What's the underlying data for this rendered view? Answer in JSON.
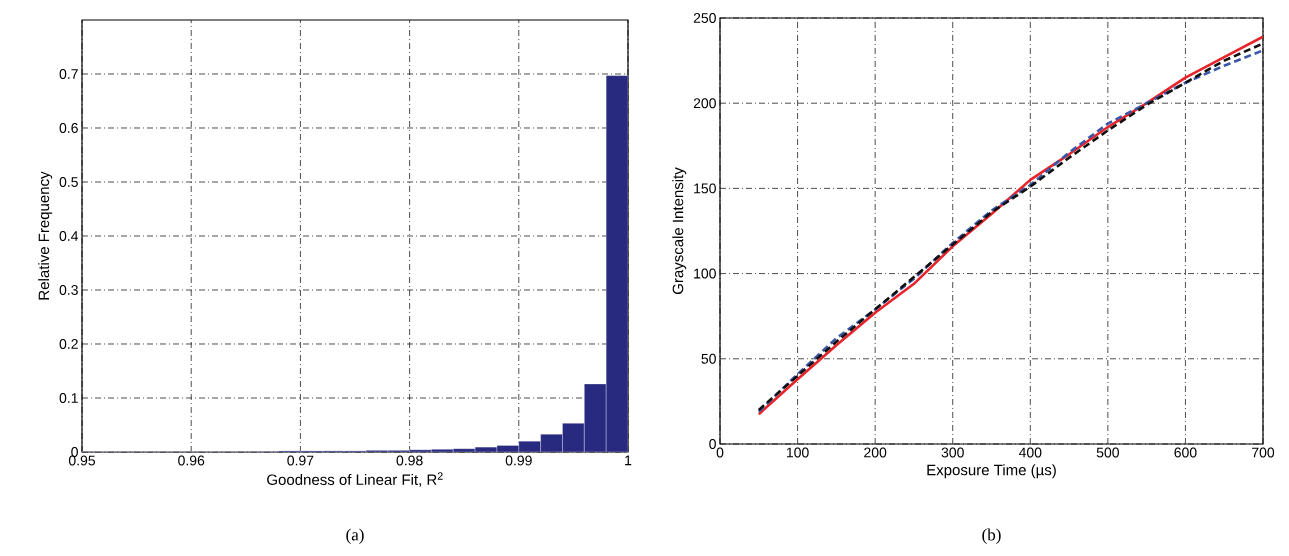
{
  "chart_data": [
    {
      "type": "histogram",
      "xlabel": "Goodness of Linear Fit, R$^{2}$",
      "ylabel": "Relative Frequency",
      "annotations": [
        "(a)"
      ],
      "bins": [
        0.95,
        0.952,
        0.954,
        0.956,
        0.958,
        0.96,
        0.962,
        0.964,
        0.966,
        0.968,
        0.97,
        0.972,
        0.974,
        0.976,
        0.978,
        0.98,
        0.982,
        0.984,
        0.986,
        0.988,
        0.99,
        0.992,
        0.994,
        0.996,
        0.998,
        1.0
      ],
      "values": [
        0.001,
        0.001,
        0.001,
        0.001,
        0.001,
        0.001,
        0.001,
        0.001,
        0.001,
        0.002,
        0.002,
        0.002,
        0.002,
        0.003,
        0.003,
        0.004,
        0.005,
        0.006,
        0.009,
        0.012,
        0.02,
        0.033,
        0.053,
        0.126,
        0.697
      ],
      "color": "#282a7f",
      "xlim": [
        0.95,
        1
      ],
      "ylim": [
        0,
        0.8
      ],
      "xticks": [
        0.95,
        0.96,
        0.97,
        0.98,
        0.99,
        1
      ],
      "yticks": [
        0,
        0.1,
        0.2,
        0.3,
        0.4,
        0.5,
        0.6,
        0.7
      ],
      "grid": true
    },
    {
      "type": "line",
      "xlabel": "Exposure Time (µs)",
      "ylabel": "Grayscale Intensity",
      "annotations": [
        "(b)"
      ],
      "x": [
        50,
        100,
        150,
        200,
        250,
        300,
        350,
        400,
        450,
        500,
        550,
        600,
        650,
        700
      ],
      "series": [
        {
          "color": "#e8242b",
          "line_style": "solid",
          "values": [
            17.5,
            38,
            58,
            77,
            94,
            116,
            135,
            155,
            170,
            186,
            200,
            215,
            227,
            239
          ]
        },
        {
          "color": "#3a56a8",
          "line_style": "dashed",
          "values": [
            19,
            41,
            62,
            79,
            97,
            118,
            137,
            152,
            171,
            188,
            200,
            212,
            222,
            231
          ]
        },
        {
          "color": "#111111",
          "line_style": "dashed",
          "values": [
            20,
            40,
            60,
            79,
            98,
            117,
            136,
            151,
            168,
            184,
            199,
            212,
            225,
            235
          ]
        }
      ],
      "xlim": [
        0,
        700
      ],
      "ylim": [
        0,
        250
      ],
      "xticks": [
        0,
        100,
        200,
        300,
        400,
        500,
        600,
        700
      ],
      "yticks": [
        0,
        50,
        100,
        150,
        200,
        250
      ],
      "grid": true
    }
  ]
}
